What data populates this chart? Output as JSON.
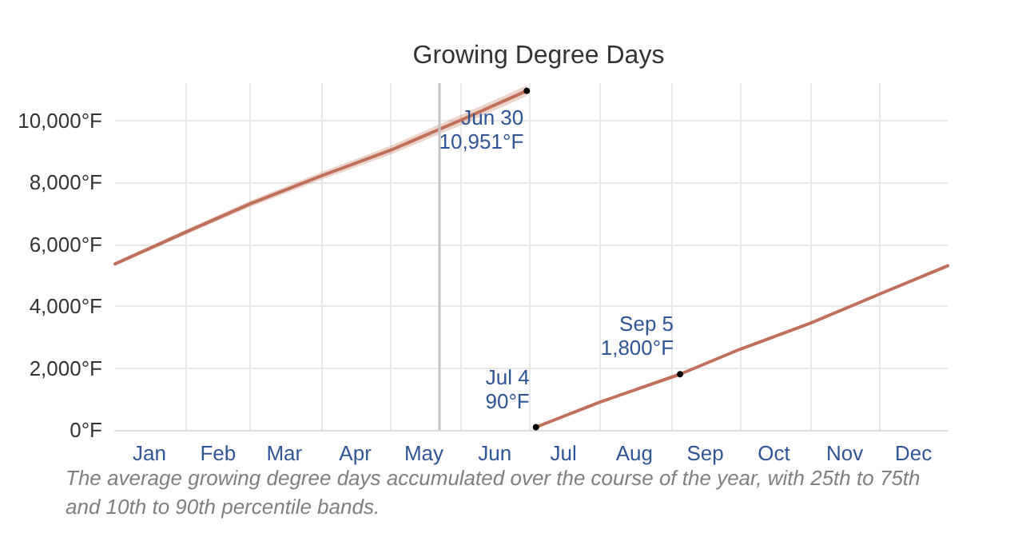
{
  "chart_data": {
    "type": "line",
    "title": "Growing Degree Days",
    "series": [
      {
        "color": "#c0705a",
        "x": [
          "--01-01",
          "--02-01",
          "--03-01",
          "--04-01",
          "--05-01",
          "--06-01",
          "--06-30"
        ],
        "values": [
          5360,
          6390,
          7300,
          8200,
          9020,
          10000,
          10951
        ],
        "lower": [
          5300,
          6310,
          7200,
          8080,
          8880,
          9830,
          10780
        ],
        "upper": [
          5420,
          6470,
          7400,
          8320,
          9160,
          10170,
          11120
        ]
      },
      {
        "color": "#c0705a",
        "x": [
          "--07-04",
          "--08-01",
          "--09-05",
          "--10-01",
          "--11-01",
          "--12-01",
          "--12-31"
        ],
        "values": [
          90,
          900,
          1800,
          2600,
          3450,
          4380,
          5300
        ]
      }
    ],
    "xlim": [
      "--01-01",
      "--12-31"
    ],
    "xticks": [
      {
        "value": "--01-16",
        "label": "Jan"
      },
      {
        "value": "--02-01",
        "label": null
      },
      {
        "value": "--02-15",
        "label": "Feb"
      },
      {
        "value": "--03-01",
        "label": null
      },
      {
        "value": "--03-16",
        "label": "Mar"
      },
      {
        "value": "--04-01",
        "label": null
      },
      {
        "value": "--04-16",
        "label": "Apr"
      },
      {
        "value": "--05-01",
        "label": null
      },
      {
        "value": "--05-16",
        "label": "May"
      },
      {
        "value": "--06-01",
        "label": null
      },
      {
        "value": "--06-16",
        "label": "Jun"
      },
      {
        "value": "--07-01",
        "label": null
      },
      {
        "value": "--07-16",
        "label": "Jul"
      },
      {
        "value": "--08-01",
        "label": null
      },
      {
        "value": "--08-16",
        "label": "Aug"
      },
      {
        "value": "--09-01",
        "label": null
      },
      {
        "value": "--09-16",
        "label": "Sep"
      },
      {
        "value": "--10-01",
        "label": null
      },
      {
        "value": "--10-16",
        "label": "Oct"
      },
      {
        "value": "--11-01",
        "label": null
      },
      {
        "value": "--11-16",
        "label": "Nov"
      },
      {
        "value": "--12-01",
        "label": null
      },
      {
        "value": "--12-16",
        "label": "Dec"
      }
    ],
    "ylim": [
      0,
      11200
    ],
    "yticks": [
      {
        "value": 0,
        "label": "0°F"
      },
      {
        "value": 2000,
        "label": "2,000°F"
      },
      {
        "value": 4000,
        "label": "4,000°F"
      },
      {
        "value": 6000,
        "label": "6,000°F"
      },
      {
        "value": 8000,
        "label": "8,000°F"
      },
      {
        "value": 10000,
        "label": "10,000°F"
      }
    ],
    "grid": true,
    "marker": "none",
    "line_style": "solid",
    "ref_lines": [
      {
        "axis": "x",
        "value": "--05-23",
        "color": "#c4c4c4"
      }
    ],
    "annotations": [
      {
        "text": "Jun 30\n10,951°F",
        "x": "--06-30",
        "y": 10951
      },
      {
        "text": "Jul 4\n90°F",
        "x": "--07-04",
        "y": 90
      },
      {
        "text": "Sep 5\n1,800°F",
        "x": "--09-05",
        "y": 1800
      },
      "The average growing degree days accumulated over the course of the year, with 25th to 75th and 10th to 90th percentile bands."
    ]
  }
}
